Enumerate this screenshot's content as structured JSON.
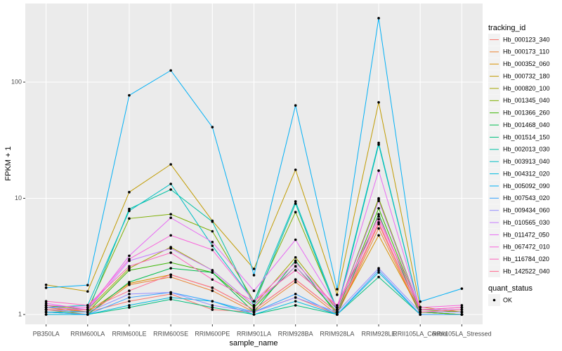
{
  "chart_data": {
    "type": "line",
    "x_label": "sample_name",
    "y_label": "FPKM + 1",
    "log_y": true,
    "grid": true,
    "categories": [
      "PB350LA",
      "RRIM600LA",
      "RRIM600LE",
      "RRIM600SE",
      "RRIM600PE",
      "RRIM901LA",
      "RRIM928BA",
      "RRIM928LA",
      "RRIM928LE",
      "RRII105LA_Control",
      "RRII105LA_Stressed"
    ],
    "ylim": [
      0.823,
      475
    ],
    "yticks": [
      1,
      10,
      100
    ],
    "legend_title": "tracking_id",
    "legend_position": "right",
    "quant_status": {
      "title": "quant_status",
      "levels": [
        "OK"
      ]
    },
    "series": [
      {
        "name": "Hb_000123_340",
        "color": "#F8766D",
        "values": [
          1.2,
          1.05,
          1.3,
          1.5,
          1.1,
          1.05,
          1.4,
          1.0,
          6.0,
          1.0,
          1.0
        ]
      },
      {
        "name": "Hb_000173_110",
        "color": "#EA8331",
        "values": [
          1.1,
          1.0,
          1.8,
          2.1,
          1.6,
          1.05,
          1.9,
          1.0,
          5.5,
          1.0,
          1.0
        ]
      },
      {
        "name": "Hb_000352_060",
        "color": "#D89000",
        "values": [
          1.15,
          1.05,
          1.85,
          2.2,
          1.7,
          1.1,
          2.0,
          1.05,
          4.8,
          1.05,
          1.0
        ]
      },
      {
        "name": "Hb_000732_180",
        "color": "#C09B00",
        "values": [
          1.8,
          1.58,
          11.3,
          19.6,
          6.4,
          2.47,
          17.6,
          1.48,
          67,
          1.16,
          1.05
        ]
      },
      {
        "name": "Hb_000820_100",
        "color": "#A3A500",
        "values": [
          1.1,
          1.1,
          2.5,
          3.8,
          2.4,
          1.2,
          3.1,
          1.1,
          9.8,
          1.05,
          1.0
        ]
      },
      {
        "name": "Hb_001345_040",
        "color": "#7CAE00",
        "values": [
          1.2,
          1.1,
          6.7,
          7.3,
          5.2,
          1.3,
          7.6,
          1.1,
          10,
          1.1,
          1.05
        ]
      },
      {
        "name": "Hb_001366_260",
        "color": "#39B600",
        "values": [
          1.1,
          1.05,
          2.4,
          2.8,
          2.3,
          1.15,
          2.6,
          1.05,
          8.2,
          1.05,
          1.0
        ]
      },
      {
        "name": "Hb_001468_040",
        "color": "#00BB4E",
        "values": [
          1.05,
          1.0,
          1.9,
          2.5,
          2.3,
          1.05,
          2.9,
          1.0,
          7.3,
          1.0,
          1.0
        ]
      },
      {
        "name": "Hb_001514_150",
        "color": "#00BF7D",
        "values": [
          1.0,
          1.0,
          1.15,
          1.35,
          1.15,
          1.0,
          1.2,
          1.0,
          2.1,
          1.0,
          1.0
        ]
      },
      {
        "name": "Hb_002013_030",
        "color": "#00C1A3",
        "values": [
          1.05,
          1.05,
          8.1,
          11.9,
          6.3,
          1.2,
          9.0,
          1.05,
          29,
          1.05,
          1.05
        ]
      },
      {
        "name": "Hb_003913_040",
        "color": "#00BFC4",
        "values": [
          1.15,
          1.2,
          7.8,
          13.3,
          3.9,
          1.3,
          9.4,
          1.1,
          30,
          1.05,
          1.05
        ]
      },
      {
        "name": "Hb_004312_020",
        "color": "#00BAE0",
        "values": [
          1.0,
          1.0,
          1.2,
          1.4,
          1.3,
          1.0,
          1.3,
          1.0,
          2.3,
          1.0,
          1.0
        ]
      },
      {
        "name": "Hb_005092_090",
        "color": "#00B0F6",
        "values": [
          1.7,
          1.79,
          77,
          126,
          41,
          2.18,
          63,
          1.65,
          355,
          1.29,
          1.67
        ]
      },
      {
        "name": "Hb_007543_020",
        "color": "#35A2FF",
        "values": [
          1.05,
          1.0,
          1.4,
          1.55,
          1.3,
          1.05,
          1.5,
          1.0,
          2.4,
          1.0,
          1.0
        ]
      },
      {
        "name": "Hb_009434_060",
        "color": "#9590FF",
        "values": [
          1.1,
          1.05,
          1.5,
          1.55,
          1.2,
          1.05,
          1.4,
          1.05,
          2.5,
          1.05,
          1.05
        ]
      },
      {
        "name": "Hb_010565_030",
        "color": "#C77CFF",
        "values": [
          1.15,
          1.1,
          2.9,
          3.7,
          2.4,
          1.2,
          2.6,
          1.1,
          9.5,
          1.1,
          1.1
        ]
      },
      {
        "name": "Hb_011472_050",
        "color": "#E76BF3",
        "values": [
          1.25,
          1.1,
          3.2,
          6.8,
          4.2,
          1.6,
          4.4,
          1.15,
          17.3,
          1.1,
          1.15
        ]
      },
      {
        "name": "Hb_067472_010",
        "color": "#FA62DB",
        "values": [
          1.2,
          1.15,
          3.0,
          4.8,
          3.6,
          1.3,
          2.8,
          1.15,
          6.6,
          1.15,
          1.2
        ]
      },
      {
        "name": "Hb_116784_020",
        "color": "#FF62BC",
        "values": [
          1.3,
          1.2,
          2.6,
          3.4,
          2.0,
          1.3,
          2.4,
          1.2,
          7.0,
          1.1,
          1.15
        ]
      },
      {
        "name": "Hb_142522_040",
        "color": "#FF6C91",
        "values": [
          1.1,
          1.1,
          1.6,
          2.2,
          1.7,
          1.1,
          2.0,
          1.05,
          6.2,
          1.05,
          1.1
        ]
      }
    ]
  }
}
